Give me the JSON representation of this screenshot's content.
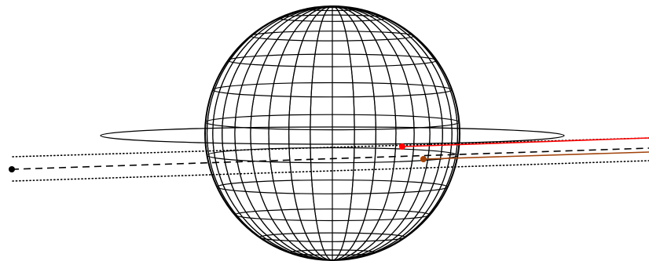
{
  "colors": {
    "background": "#ffffff",
    "outline": "#000000",
    "red_ray": "#ff0000",
    "brown_ray": "#a0420a",
    "central_line": "#000000"
  },
  "elements": {
    "sphere": "globe-with-latitude-longitude-grid",
    "ring": "equatorial-ellipse",
    "central_line": "dashed-line-with-black-endpoint",
    "bounds": "two-dotted-lines",
    "rays": [
      "red-ray-with-dot",
      "brown-ray-with-dot"
    ]
  }
}
